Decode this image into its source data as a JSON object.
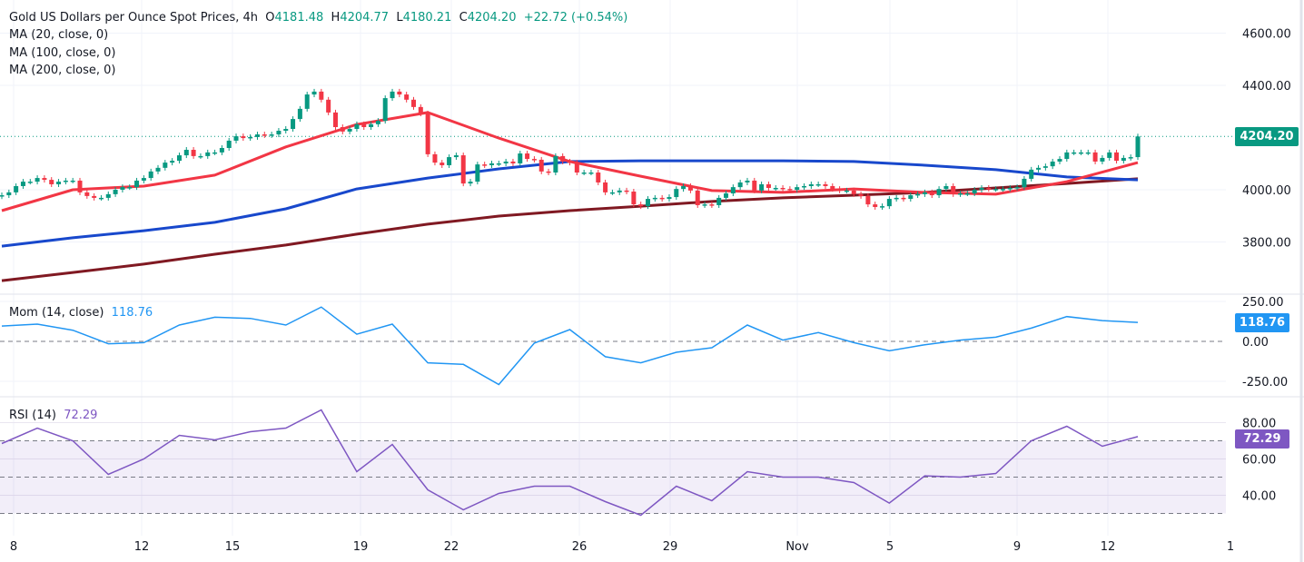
{
  "header": {
    "title": "Gold US Dollars per Ounce Spot Prices, 4h",
    "open_label": "O",
    "open": "4181.48",
    "high_label": "H",
    "high": "4204.77",
    "low_label": "L",
    "low": "4180.21",
    "close_label": "C",
    "close": "4204.20",
    "change": "+22.72 (+0.54%)"
  },
  "indicators": {
    "ma20": "MA (20, close, 0)",
    "ma100": "MA (100, close, 0)",
    "ma200": "MA (200, close, 0)",
    "mom_label": "Mom (14, close)",
    "mom_value": "118.76",
    "rsi_label": "RSI (14)",
    "rsi_value": "72.29"
  },
  "colors": {
    "up": "#089981",
    "down": "#f23645",
    "ma20": "#f23645",
    "ma100": "#1848cc",
    "ma200": "#801922",
    "mom": "#2196f3",
    "rsi": "#7e57c2"
  },
  "chart_data": [
    {
      "type": "candlestick",
      "title": "Gold US Dollars per Ounce Spot Prices, 4h",
      "x_tick_labels": [
        "8",
        "12",
        "15",
        "19",
        "22",
        "26",
        "29",
        "Nov",
        "5",
        "9",
        "12",
        "1"
      ],
      "y_tick_labels": [
        "4600.00",
        "4400.00",
        "4000.00",
        "3800.00"
      ],
      "ylim": [
        3650,
        4650
      ],
      "last_price_label": "4204.20",
      "first_open": 3975,
      "closes": [
        3979,
        3990,
        4014,
        4031,
        4031,
        4045,
        4038,
        4021,
        4031,
        4035,
        4035,
        3990,
        3976,
        3969,
        3969,
        3983,
        4000,
        4010,
        4010,
        4035,
        4045,
        4070,
        4084,
        4104,
        4111,
        4132,
        4153,
        4129,
        4129,
        4143,
        4143,
        4160,
        4188,
        4205,
        4198,
        4202,
        4212,
        4209,
        4212,
        4226,
        4233,
        4271,
        4310,
        4365,
        4376,
        4345,
        4296,
        4240,
        4223,
        4233,
        4251,
        4240,
        4251,
        4264,
        4351,
        4376,
        4365,
        4345,
        4317,
        4292,
        4136,
        4104,
        4094,
        4125,
        4132,
        4024,
        4031,
        4097,
        4094,
        4101,
        4101,
        4108,
        4101,
        4139,
        4118,
        4115,
        4070,
        4066,
        4129,
        4108,
        4104,
        4066,
        4066,
        4066,
        4028,
        3990,
        3990,
        3997,
        3993,
        3944,
        3937,
        3965,
        3969,
        3965,
        3972,
        4003,
        4014,
        3997,
        3941,
        3944,
        3941,
        3969,
        3986,
        4010,
        4028,
        4035,
        3997,
        4021,
        4007,
        4007,
        4003,
        4000,
        4010,
        4014,
        4021,
        4021,
        4014,
        4003,
        3997,
        3997,
        3983,
        3976,
        3944,
        3934,
        3937,
        3965,
        3969,
        3965,
        3979,
        3983,
        3990,
        3979,
        4003,
        4014,
        3983,
        3986,
        3986,
        4000,
        4007,
        4003,
        4003,
        4003,
        4007,
        4010,
        4042,
        4077,
        4084,
        4090,
        4108,
        4118,
        4143,
        4143,
        4143,
        4143,
        4108,
        4122,
        4143,
        4111,
        4122,
        4125,
        4204.2
      ],
      "series": [
        {
          "name": "MA (20, close, 0)",
          "values": [
            3920,
            4000,
            4014,
            4056,
            4164,
            4250,
            4296,
            4198,
            4108,
            4052,
            3997,
            3990,
            4003,
            3990,
            3983,
            4031,
            4104
          ]
        },
        {
          "name": "MA (100, close, 0)",
          "values": [
            3784,
            3816,
            3843,
            3875,
            3927,
            4003,
            4045,
            4080,
            4108,
            4111,
            4111,
            4111,
            4108,
            4094,
            4077,
            4049,
            4038
          ]
        },
        {
          "name": "MA (200, close, 0)",
          "values": [
            3652,
            3683,
            3715,
            3753,
            3788,
            3830,
            3868,
            3899,
            3920,
            3937,
            3955,
            3969,
            3979,
            3990,
            4007,
            4024,
            4042
          ]
        }
      ]
    },
    {
      "type": "line",
      "name": "Mom (14, close)",
      "y_tick_labels": [
        "250.00",
        "0.00",
        "-250.00"
      ],
      "ylim": [
        -310,
        310
      ],
      "values": [
        96,
        108,
        70,
        -15,
        -8,
        102,
        151,
        144,
        102,
        215,
        45,
        108,
        -134,
        -144,
        -270,
        -11,
        74,
        -96,
        -134,
        -68,
        -40,
        102,
        8,
        55,
        -8,
        -59,
        -21,
        8,
        26,
        83,
        155,
        130,
        118.76
      ]
    },
    {
      "type": "line",
      "name": "RSI (14)",
      "y_tick_labels": [
        "80.00",
        "60.00",
        "40.00"
      ],
      "ylim": [
        20,
        90
      ],
      "band": [
        30,
        70
      ],
      "midline": 50,
      "values": [
        68.5,
        77,
        70,
        51.5,
        60,
        73,
        70.5,
        75,
        77,
        87,
        53,
        68,
        43,
        32,
        41,
        45,
        45,
        36.5,
        29,
        45,
        37,
        53,
        50,
        50,
        47,
        35.7,
        50.7,
        50,
        52,
        70,
        78,
        67,
        72.29
      ]
    }
  ]
}
